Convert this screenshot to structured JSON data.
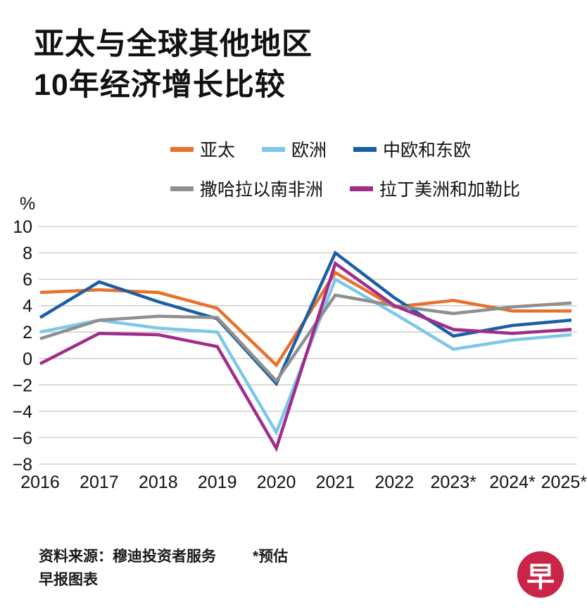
{
  "title": {
    "line1": "亚太与全球其他地区",
    "line2": "10年经济增长比较"
  },
  "chart_data": {
    "type": "line",
    "x": [
      "2016",
      "2017",
      "2018",
      "2019",
      "2020",
      "2021",
      "2022",
      "2023*",
      "2024*",
      "2025*"
    ],
    "ylabel": "%",
    "ylim": [
      -8,
      10
    ],
    "yticks": [
      10,
      8,
      6,
      4,
      2,
      0,
      -2,
      -4,
      -6,
      -8
    ],
    "grid": true,
    "legend_position": "top",
    "series": [
      {
        "name": "亚太",
        "slug": "asia-pacific",
        "color": "#E8712B",
        "values": [
          5.0,
          5.2,
          5.0,
          3.8,
          -0.5,
          6.5,
          3.9,
          4.4,
          3.6,
          3.6
        ]
      },
      {
        "name": "欧洲",
        "slug": "europe",
        "color": "#7DC7E8",
        "values": [
          2.0,
          2.9,
          2.3,
          2.0,
          -5.6,
          6.0,
          3.4,
          0.7,
          1.4,
          1.8
        ]
      },
      {
        "name": "中欧和东欧",
        "slug": "central-eastern-europe",
        "color": "#1A5FA4",
        "values": [
          3.1,
          5.8,
          4.3,
          3.0,
          -1.9,
          8.0,
          4.6,
          1.7,
          2.5,
          2.9
        ]
      },
      {
        "name": "撒哈拉以南非洲",
        "slug": "sub-saharan-africa",
        "color": "#8F8F8F",
        "values": [
          1.5,
          2.9,
          3.2,
          3.1,
          -1.7,
          4.8,
          4.0,
          3.4,
          3.9,
          4.2
        ]
      },
      {
        "name": "拉丁美洲和加勒比",
        "slug": "latin-america-caribbean",
        "color": "#A02C8C",
        "values": [
          -0.4,
          1.9,
          1.8,
          0.9,
          -6.8,
          7.2,
          4.0,
          2.2,
          1.9,
          2.2
        ]
      }
    ]
  },
  "footer": {
    "source": "资料来源：穆迪投资者服务",
    "credit": "早报图表",
    "estimate_note": "*预估"
  },
  "logo": {
    "text": "早",
    "color": "#CB2449"
  }
}
